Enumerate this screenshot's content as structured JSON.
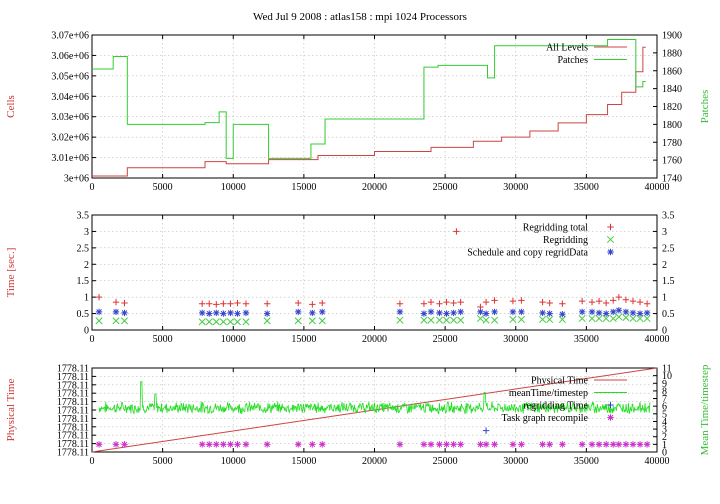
{
  "chart_data": [
    {
      "type": "line",
      "title": "Wed Jul 9 2008 : atlas158 : mpi 1024 Processors",
      "ylabel": "Cells",
      "y2label": "Patches",
      "xlim": [
        0,
        40000
      ],
      "ylim": [
        3000000,
        3070000
      ],
      "y2lim": [
        1740,
        1900
      ],
      "xticks": [
        "0",
        "5000",
        "10000",
        "15000",
        "20000",
        "25000",
        "30000",
        "35000",
        "40000"
      ],
      "yticks": [
        "3e+06",
        "3.01e+06",
        "3.02e+06",
        "3.03e+06",
        "3.04e+06",
        "3.05e+06",
        "3.06e+06",
        "3.07e+06"
      ],
      "y2ticks": [
        "1740",
        "1760",
        "1780",
        "1800",
        "1820",
        "1840",
        "1860",
        "1880",
        "1900"
      ],
      "grid": true,
      "legend_position": "top-right",
      "series": [
        {
          "name": "All Levels",
          "color": "#cc4444",
          "axis": "y",
          "x": [
            0,
            2500,
            8000,
            9500,
            12500,
            16000,
            20000,
            24000,
            27000,
            29000,
            31000,
            33000,
            35000,
            36500,
            37500,
            38500,
            39000
          ],
          "values": [
            3001000,
            3005000,
            3008000,
            3007000,
            3009000,
            3011000,
            3013000,
            3015000,
            3018000,
            3020000,
            3023000,
            3027000,
            3031000,
            3036000,
            3042000,
            3052000,
            3064000
          ]
        },
        {
          "name": "Patches",
          "color": "#33cc33",
          "axis": "y2",
          "x": [
            0,
            1500,
            2500,
            8000,
            9000,
            9500,
            10000,
            12500,
            15500,
            16500,
            23500,
            24500,
            28000,
            28500,
            31500,
            34500,
            36500,
            38500,
            39000
          ],
          "values": [
            1862,
            1876,
            1800,
            1802,
            1814,
            1762,
            1800,
            1762,
            1778,
            1806,
            1864,
            1866,
            1852,
            1888,
            1888,
            1888,
            1895,
            1842,
            1848
          ]
        }
      ]
    },
    {
      "type": "scatter",
      "ylabel": "Time [sec.]",
      "xlim": [
        0,
        40000
      ],
      "ylim": [
        0,
        3.5
      ],
      "xticks": [
        "0",
        "5000",
        "10000",
        "15000",
        "20000",
        "25000",
        "30000",
        "35000",
        "40000"
      ],
      "yticks": [
        "0",
        "0.5",
        "1",
        "1.5",
        "2",
        "2.5",
        "3",
        "3.5"
      ],
      "y2ticks": [
        "0",
        "0.5",
        "1",
        "1.5",
        "2",
        "2.5",
        "3",
        "3.5"
      ],
      "grid": true,
      "legend_position": "top-right",
      "x": [
        500,
        1700,
        2300,
        7800,
        8300,
        8800,
        9300,
        9800,
        10300,
        10900,
        12400,
        14600,
        15600,
        16300,
        21800,
        23500,
        24000,
        24600,
        25100,
        25600,
        26100,
        27500,
        27900,
        28500,
        29800,
        30400,
        31900,
        32400,
        33300,
        34700,
        35400,
        35900,
        36400,
        36900,
        37300,
        37800,
        38300,
        38800,
        39300
      ],
      "series": [
        {
          "name": "Regridding total",
          "color": "#dd3333",
          "marker": "+",
          "values": [
            1.0,
            0.85,
            0.82,
            0.8,
            0.8,
            0.78,
            0.8,
            0.8,
            0.82,
            0.8,
            0.8,
            0.82,
            0.78,
            0.82,
            0.8,
            0.8,
            0.85,
            0.8,
            0.85,
            0.82,
            0.85,
            0.7,
            0.85,
            0.9,
            0.88,
            0.9,
            0.85,
            0.82,
            0.8,
            0.88,
            0.85,
            0.88,
            0.82,
            0.9,
            1.0,
            0.92,
            0.88,
            0.85,
            0.8
          ]
        },
        {
          "name": "Regridding",
          "color": "#44cc44",
          "marker": "x",
          "values": [
            0.28,
            0.28,
            0.28,
            0.25,
            0.25,
            0.25,
            0.25,
            0.25,
            0.25,
            0.25,
            0.28,
            0.28,
            0.28,
            0.28,
            0.3,
            0.3,
            0.3,
            0.3,
            0.3,
            0.3,
            0.3,
            0.35,
            0.3,
            0.3,
            0.32,
            0.32,
            0.32,
            0.32,
            0.32,
            0.35,
            0.35,
            0.35,
            0.35,
            0.35,
            0.4,
            0.38,
            0.35,
            0.35,
            0.35
          ]
        },
        {
          "name": "Schedule and copy regridData",
          "color": "#3344cc",
          "marker": "*",
          "values": [
            0.55,
            0.55,
            0.52,
            0.52,
            0.5,
            0.52,
            0.5,
            0.52,
            0.5,
            0.52,
            0.5,
            0.55,
            0.52,
            0.55,
            0.55,
            0.5,
            0.55,
            0.52,
            0.5,
            0.52,
            0.55,
            0.55,
            0.5,
            0.55,
            0.55,
            0.55,
            0.52,
            0.5,
            0.48,
            0.55,
            0.55,
            0.52,
            0.5,
            0.55,
            0.6,
            0.55,
            0.52,
            0.5,
            0.52
          ]
        }
      ]
    },
    {
      "type": "line",
      "ylabel": "Physical Time",
      "y2label": "Mean Time/timestep",
      "xlim": [
        0,
        40000
      ],
      "ylim": [
        0,
        10
      ],
      "y2lim": [
        0,
        11
      ],
      "xticks": [
        "0",
        "5000",
        "10000",
        "15000",
        "20000",
        "25000",
        "30000",
        "35000",
        "40000"
      ],
      "yticks": [
        "1778.11",
        "1778.11",
        "1778.11",
        "1778.11",
        "1778.11",
        "1778.11",
        "1778.11",
        "1778.11",
        "1778.11",
        "1778.11",
        "1778.11"
      ],
      "y2ticks": [
        "0",
        "1",
        "2",
        "3",
        "4",
        "5",
        "6",
        "7",
        "8",
        "9",
        "10",
        "11"
      ],
      "grid": true,
      "legend_position": "top-right",
      "series": [
        {
          "name": "Physical Time",
          "color": "#cc4444",
          "axis": "y",
          "x": [
            0,
            40000
          ],
          "values": [
            0,
            10
          ]
        },
        {
          "name": "meanTime/timestep",
          "color": "#22dd22",
          "axis": "y2",
          "mean": 5.8,
          "spread": 0.6,
          "spikes": [
            [
              3500,
              9.2
            ],
            [
              4500,
              7.6
            ],
            [
              27800,
              7.8
            ]
          ]
        },
        {
          "name": "regridding Time",
          "color": "#3344cc",
          "marker": "+",
          "axis": "y2",
          "x": [
            27900
          ],
          "values": [
            2.8
          ]
        },
        {
          "name": "Task graph recompile",
          "color": "#cc33cc",
          "marker": "*",
          "axis": "y2",
          "x": [
            500,
            1700,
            2300,
            7800,
            8300,
            8800,
            9300,
            9800,
            10300,
            10900,
            12400,
            14600,
            15600,
            16300,
            21800,
            23500,
            24000,
            24600,
            25100,
            25600,
            26100,
            27500,
            27900,
            28500,
            29800,
            30400,
            31900,
            32400,
            33300,
            34700,
            35400,
            35900,
            36400,
            36900,
            37300,
            37800,
            38300,
            38800,
            39300
          ],
          "values": [
            1,
            1,
            1,
            1,
            1,
            1,
            1,
            1,
            1,
            1,
            1,
            1,
            1,
            1,
            1,
            1,
            1,
            1,
            1,
            1,
            1,
            1,
            1,
            1,
            1,
            1,
            1,
            1,
            1,
            1,
            1,
            1,
            1,
            1,
            1,
            1,
            1,
            1,
            1
          ]
        }
      ]
    }
  ]
}
